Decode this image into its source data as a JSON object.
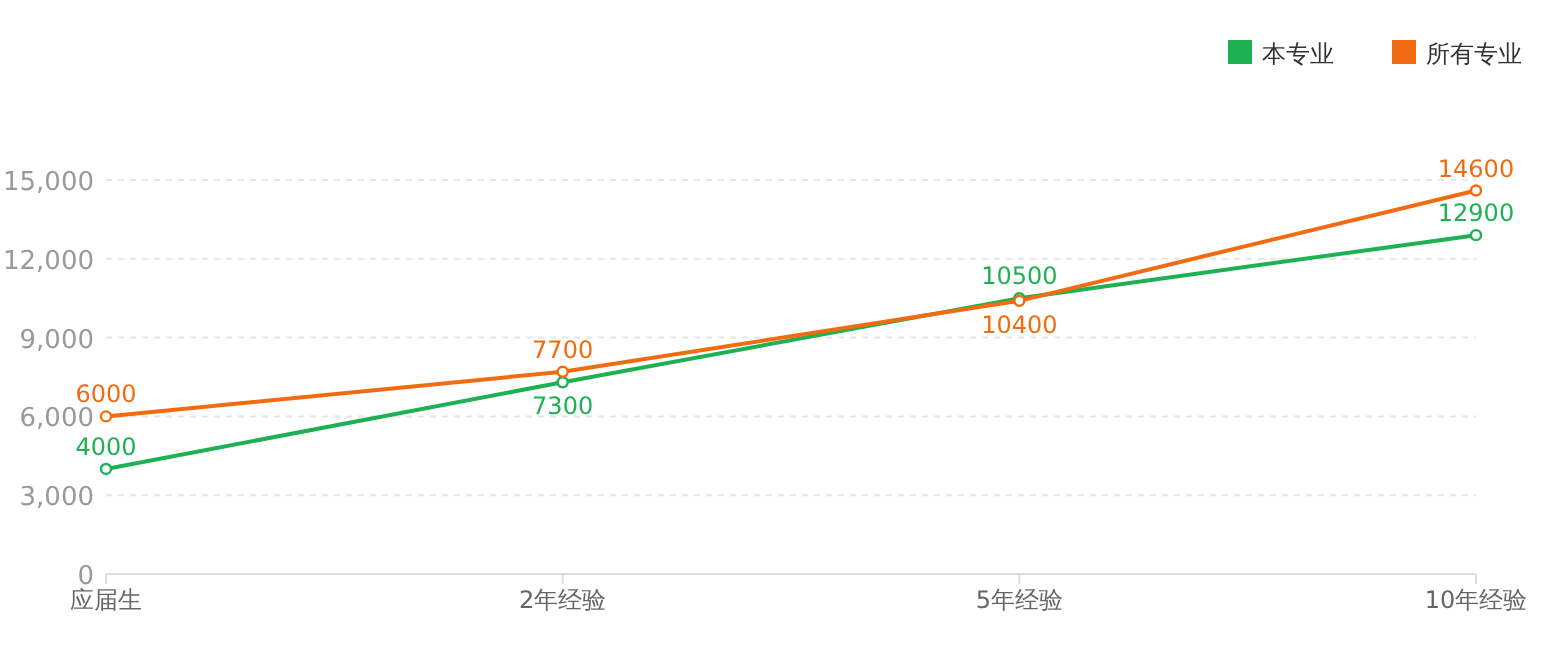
{
  "chart_data": {
    "type": "line",
    "categories": [
      "应届生",
      "2年经验",
      "5年经验",
      "10年经验"
    ],
    "series": [
      {
        "name": "本专业",
        "color": "#1db153",
        "values": [
          4000,
          7300,
          10500,
          12900
        ]
      },
      {
        "name": "所有专业",
        "color": "#f26b10",
        "values": [
          6000,
          7700,
          10400,
          14600
        ]
      }
    ],
    "ylim": [
      0,
      15000
    ],
    "yticks": [
      {
        "value": 0,
        "label": "0"
      },
      {
        "value": 3000,
        "label": "3,000"
      },
      {
        "value": 6000,
        "label": "6,000"
      },
      {
        "value": 9000,
        "label": "9,000"
      },
      {
        "value": 12000,
        "label": "12,000"
      },
      {
        "value": 15000,
        "label": "15,000"
      }
    ],
    "grid": "y",
    "legend": "top right",
    "marker": "circle",
    "line_style": "solid",
    "data_labels": true
  }
}
